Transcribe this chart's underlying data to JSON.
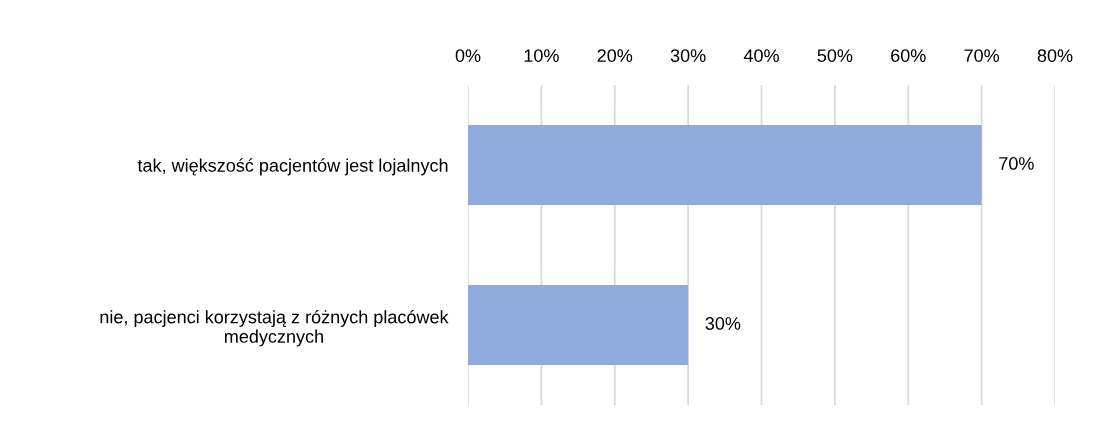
{
  "chart_data": {
    "type": "bar",
    "orientation": "horizontal",
    "categories": [
      "tak, większość pacjentów jest lojalnych",
      "nie, pacjenci korzystają z różnych placówek\nmedycznych"
    ],
    "values": [
      70,
      30
    ],
    "color": "#8faadc",
    "value_labels": [
      "70%",
      "30%"
    ],
    "xlim": [
      0,
      80
    ],
    "xticks": [
      {
        "value": 0,
        "label": "0%"
      },
      {
        "value": 10,
        "label": "10%"
      },
      {
        "value": 20,
        "label": "20%"
      },
      {
        "value": 30,
        "label": "30%"
      },
      {
        "value": 40,
        "label": "40%"
      },
      {
        "value": 50,
        "label": "50%"
      },
      {
        "value": 60,
        "label": "60%"
      },
      {
        "value": 70,
        "label": "70%"
      },
      {
        "value": 80,
        "label": "80%"
      }
    ],
    "grid": "x",
    "legend": false
  }
}
